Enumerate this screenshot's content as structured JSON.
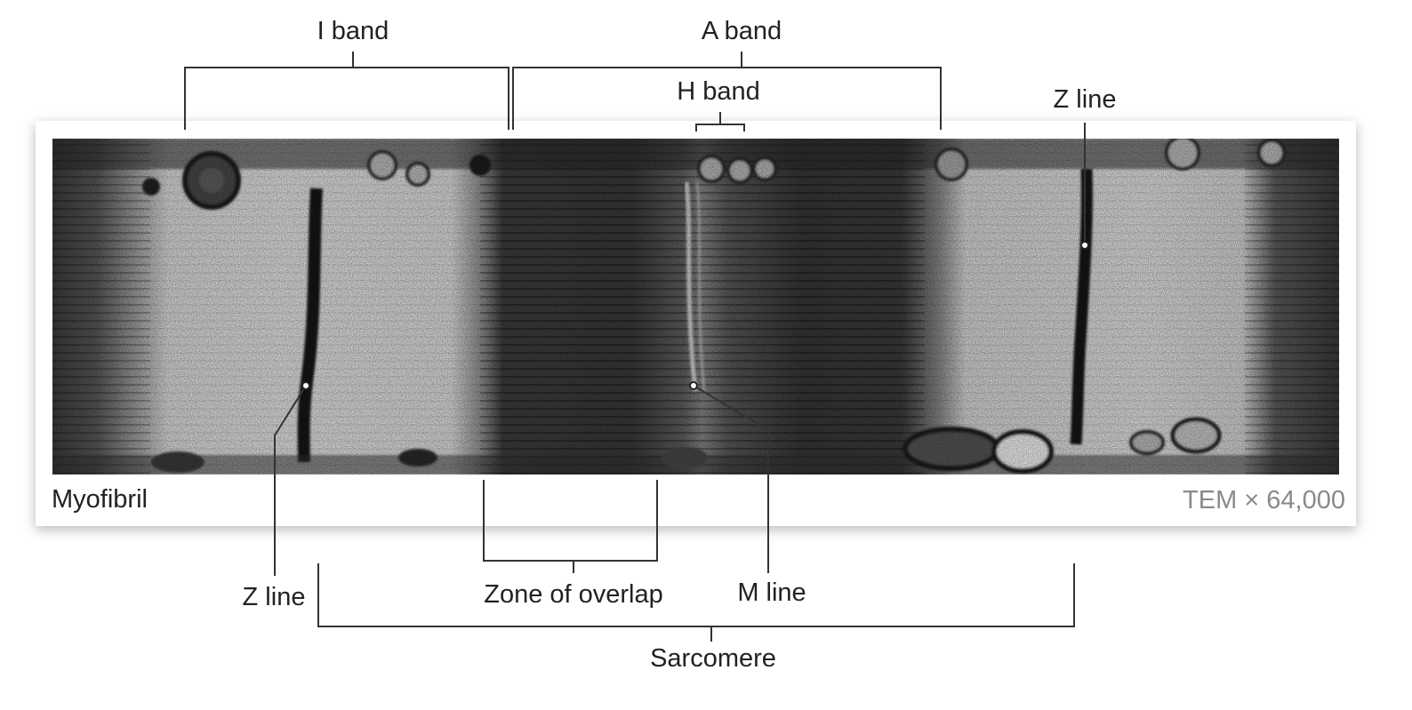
{
  "panel": {
    "title": "Myofibril",
    "magnification": "TEM × 64,000"
  },
  "labels": {
    "i_band": "I band",
    "a_band": "A band",
    "h_band": "H band",
    "z_line_top": "Z line",
    "z_line_bottom": "Z line",
    "zone_of_overlap": "Zone of overlap",
    "m_line": "M line",
    "sarcomere": "Sarcomere"
  },
  "colors": {
    "line": "#333333",
    "label_text": "#222222",
    "magnification_text": "#8a8a8a",
    "panel_bg": "#ffffff"
  }
}
